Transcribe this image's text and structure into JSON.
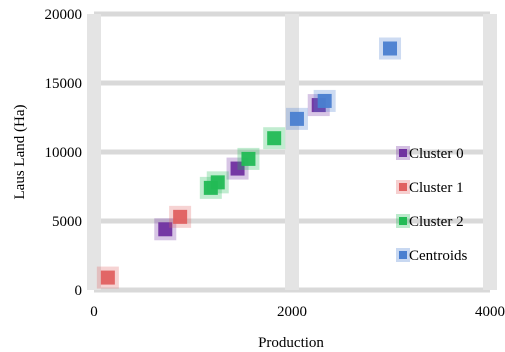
{
  "chart_data": {
    "type": "scatter",
    "xlabel": "Production",
    "ylabel": "Laus Land (Ha)",
    "xlim": [
      0,
      4000
    ],
    "ylim": [
      0,
      20000
    ],
    "x_ticks": [
      0,
      2000,
      4000
    ],
    "y_ticks": [
      0,
      5000,
      10000,
      15000,
      20000
    ],
    "grid": true,
    "legend_position": "right",
    "series": [
      {
        "name": "Cluster 0",
        "color": "#7030a0",
        "points": [
          {
            "x": 720,
            "y": 4400
          },
          {
            "x": 1450,
            "y": 8800
          },
          {
            "x": 2270,
            "y": 13400
          }
        ]
      },
      {
        "name": "Cluster 1",
        "color": "#e06060",
        "points": [
          {
            "x": 140,
            "y": 900
          },
          {
            "x": 870,
            "y": 5300
          }
        ]
      },
      {
        "name": "Cluster 2",
        "color": "#22bb55",
        "points": [
          {
            "x": 1180,
            "y": 7400
          },
          {
            "x": 1250,
            "y": 7800
          },
          {
            "x": 1560,
            "y": 9500
          },
          {
            "x": 1820,
            "y": 11000
          }
        ]
      },
      {
        "name": "Centroids",
        "color": "#4a7fd0",
        "points": [
          {
            "x": 2050,
            "y": 12400
          },
          {
            "x": 2330,
            "y": 13700
          },
          {
            "x": 2990,
            "y": 17500
          }
        ]
      }
    ]
  }
}
